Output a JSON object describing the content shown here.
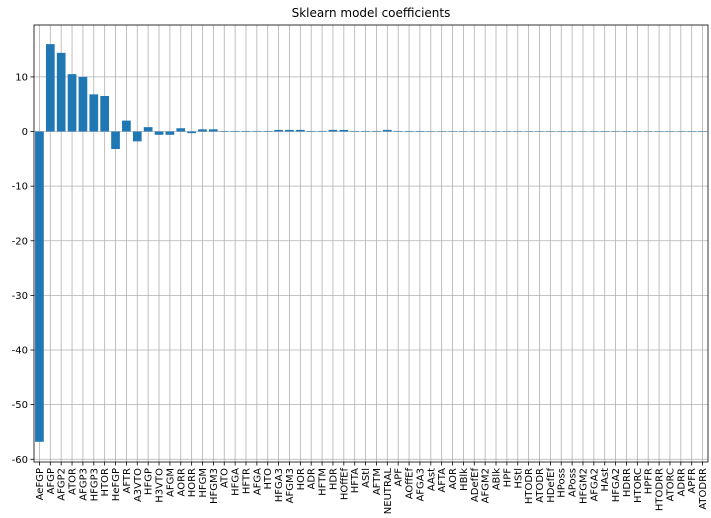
{
  "chart_data": {
    "type": "bar",
    "title": "Sklearn model coefficients",
    "xlabel": "",
    "ylabel": "",
    "ylim": [
      -60.5,
      19.5
    ],
    "yticks": [
      -60,
      -50,
      -40,
      -30,
      -20,
      -10,
      0,
      10
    ],
    "grid": true,
    "bar_color": "#1f77b4",
    "categories": [
      "AeFGP",
      "AFGP",
      "AFGP2",
      "ATOR",
      "AFGP3",
      "HFGP3",
      "HTOR",
      "HeFGP",
      "AFTR",
      "A3VTO",
      "HFGP",
      "H3VTO",
      "AFGM",
      "AORR",
      "HORR",
      "HFGM",
      "HFGM3",
      "ATO",
      "HFGA",
      "HFTR",
      "AFGA",
      "HTO",
      "HFGA3",
      "AFGM3",
      "HOR",
      "ADR",
      "HFTM",
      "HDR",
      "HOffEf",
      "HFTA",
      "AStl",
      "AFTM",
      "NEUTRAL",
      "APF",
      "AOffEf",
      "AFGA3",
      "AAst",
      "AFTA",
      "AOR",
      "HBlk",
      "ADefEf",
      "AFGM2",
      "ABlk",
      "HPF",
      "HStl",
      "HTODR",
      "ATODR",
      "HDefEf",
      "HPoss",
      "APoss",
      "HFGM2",
      "AFGA2",
      "HAst",
      "HFGA2",
      "HDRR",
      "HTORC",
      "HPFR",
      "HTODRR",
      "ATORC",
      "ADRR",
      "APFR",
      "ATODRR"
    ],
    "values": [
      -56.8,
      16.0,
      14.4,
      10.5,
      10.0,
      6.8,
      6.5,
      -3.2,
      2.0,
      -1.8,
      0.8,
      -0.6,
      -0.6,
      0.6,
      -0.3,
      0.4,
      0.4,
      0.1,
      0.1,
      0.1,
      0.1,
      0.1,
      0.3,
      0.3,
      0.3,
      0.1,
      0.1,
      0.3,
      0.3,
      0.1,
      0.1,
      0.1,
      0.3,
      0.1,
      0.1,
      0.1,
      0.05,
      0.05,
      0.05,
      0.05,
      0.05,
      0.05,
      0.05,
      0.05,
      0.05,
      0.05,
      0.05,
      0.05,
      0.05,
      0.05,
      0.05,
      0.05,
      0.05,
      0.05,
      0.05,
      0.05,
      0.05,
      0.05,
      0.05,
      0.05,
      0.05,
      0.05
    ]
  }
}
